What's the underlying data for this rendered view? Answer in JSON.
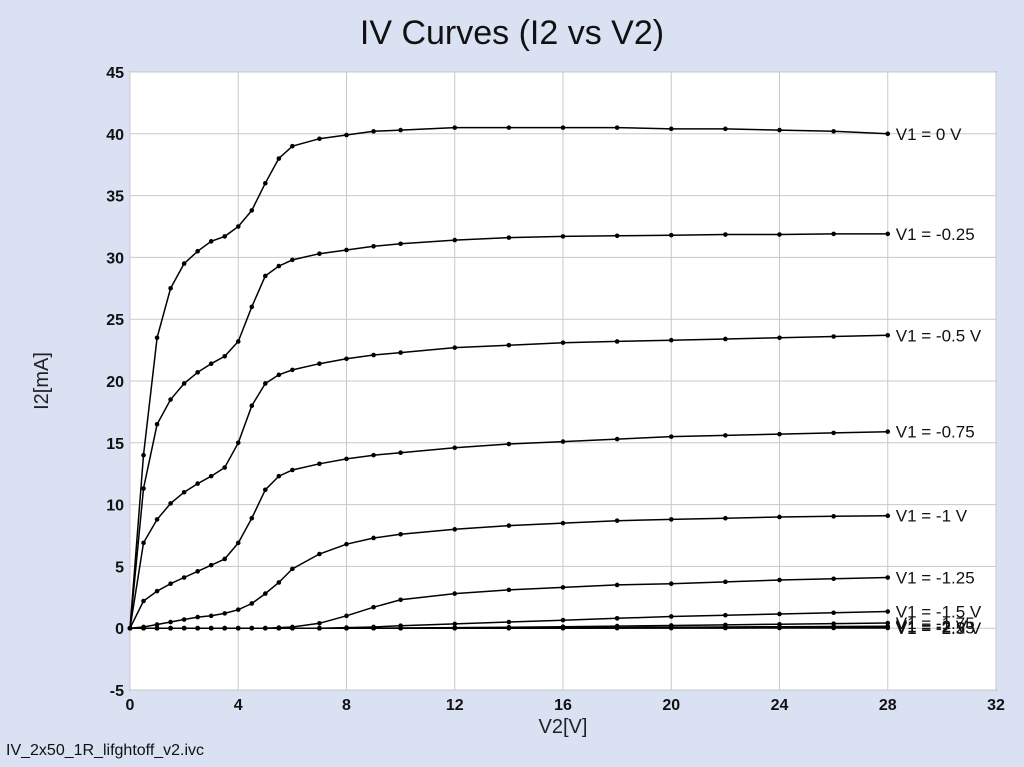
{
  "footer": {
    "filename": "IV_2x50_1R_lifghtoff_v2.ivc"
  },
  "chart_data": {
    "type": "line",
    "title": "IV Curves (I2 vs V2)",
    "xlabel": "V2[V]",
    "ylabel": "I2[mA]",
    "xlim": [
      0,
      32
    ],
    "ylim": [
      -5,
      45
    ],
    "xticks": [
      0,
      4,
      8,
      12,
      16,
      20,
      24,
      28,
      32
    ],
    "yticks": [
      -5,
      0,
      5,
      10,
      15,
      20,
      25,
      30,
      35,
      40,
      45
    ],
    "grid": true,
    "legend": "none",
    "line_color": "#000000",
    "x": [
      0,
      0.5,
      1,
      1.5,
      2,
      2.5,
      3,
      3.5,
      4,
      4.5,
      5,
      5.5,
      6,
      7,
      8,
      9,
      10,
      12,
      14,
      16,
      18,
      20,
      22,
      24,
      26,
      28
    ],
    "series": [
      {
        "name": "V1 = 0 V",
        "values": [
          0,
          14.0,
          23.5,
          27.5,
          29.5,
          30.5,
          31.3,
          31.7,
          32.5,
          33.8,
          36.0,
          38.0,
          39.0,
          39.6,
          39.9,
          40.2,
          40.3,
          40.5,
          40.5,
          40.5,
          40.5,
          40.4,
          40.4,
          40.3,
          40.2,
          40.0
        ]
      },
      {
        "name": "V1 = -0.25",
        "values": [
          0,
          11.3,
          16.5,
          18.5,
          19.8,
          20.7,
          21.4,
          22.0,
          23.2,
          26.0,
          28.5,
          29.3,
          29.8,
          30.3,
          30.6,
          30.9,
          31.1,
          31.4,
          31.6,
          31.7,
          31.75,
          31.8,
          31.85,
          31.85,
          31.9,
          31.9
        ]
      },
      {
        "name": "V1 = -0.5 V",
        "values": [
          0,
          6.9,
          8.8,
          10.1,
          11.0,
          11.7,
          12.3,
          13.0,
          15.0,
          18.0,
          19.8,
          20.5,
          20.9,
          21.4,
          21.8,
          22.1,
          22.3,
          22.7,
          22.9,
          23.1,
          23.2,
          23.3,
          23.4,
          23.5,
          23.6,
          23.7
        ]
      },
      {
        "name": "V1 = -0.75",
        "values": [
          0,
          2.2,
          3.0,
          3.6,
          4.1,
          4.6,
          5.1,
          5.6,
          6.9,
          8.9,
          11.2,
          12.3,
          12.8,
          13.3,
          13.7,
          14.0,
          14.2,
          14.6,
          14.9,
          15.1,
          15.3,
          15.5,
          15.6,
          15.7,
          15.8,
          15.9
        ]
      },
      {
        "name": "V1 = -1 V",
        "values": [
          0,
          0.1,
          0.3,
          0.5,
          0.7,
          0.9,
          1.0,
          1.2,
          1.5,
          2.0,
          2.8,
          3.7,
          4.8,
          6.0,
          6.8,
          7.3,
          7.6,
          8.0,
          8.3,
          8.5,
          8.7,
          8.8,
          8.9,
          9.0,
          9.05,
          9.1
        ]
      },
      {
        "name": "V1 = -1.25",
        "values": [
          0,
          0,
          0,
          0,
          0,
          0,
          0,
          0,
          0,
          0,
          0,
          0.05,
          0.1,
          0.4,
          1.0,
          1.7,
          2.3,
          2.8,
          3.1,
          3.3,
          3.5,
          3.6,
          3.75,
          3.9,
          4.0,
          4.1
        ]
      },
      {
        "name": "V1 = -1.5 V",
        "values": [
          0,
          0,
          0,
          0,
          0,
          0,
          0,
          0,
          0,
          0,
          0,
          0,
          0,
          0,
          0.05,
          0.1,
          0.2,
          0.35,
          0.5,
          0.65,
          0.8,
          0.95,
          1.05,
          1.15,
          1.25,
          1.35
        ]
      },
      {
        "name": "V1 = -1.75",
        "values": [
          0,
          0,
          0,
          0,
          0,
          0,
          0,
          0,
          0,
          0,
          0,
          0,
          0,
          0,
          0,
          0,
          0.02,
          0.05,
          0.08,
          0.12,
          0.17,
          0.22,
          0.27,
          0.32,
          0.37,
          0.42
        ]
      },
      {
        "name": "V1 = -2 V",
        "values": [
          0,
          0,
          0,
          0,
          0,
          0,
          0,
          0,
          0,
          0,
          0,
          0,
          0,
          0,
          0,
          0,
          0,
          0.01,
          0.02,
          0.04,
          0.06,
          0.08,
          0.1,
          0.12,
          0.14,
          0.16
        ]
      },
      {
        "name": "V1 = -2.25",
        "values": [
          0,
          0,
          0,
          0,
          0,
          0,
          0,
          0,
          0,
          0,
          0,
          0,
          0,
          0,
          0,
          0,
          0,
          0,
          0.01,
          0.01,
          0.02,
          0.03,
          0.04,
          0.05,
          0.06,
          0.07
        ]
      },
      {
        "name": "V1 = -2.5 V",
        "values": [
          0,
          0,
          0,
          0,
          0,
          0,
          0,
          0,
          0,
          0,
          0,
          0,
          0,
          0,
          0,
          0,
          0,
          0,
          0,
          0,
          0.01,
          0.01,
          0.01,
          0.02,
          0.02,
          0.02
        ]
      }
    ]
  }
}
